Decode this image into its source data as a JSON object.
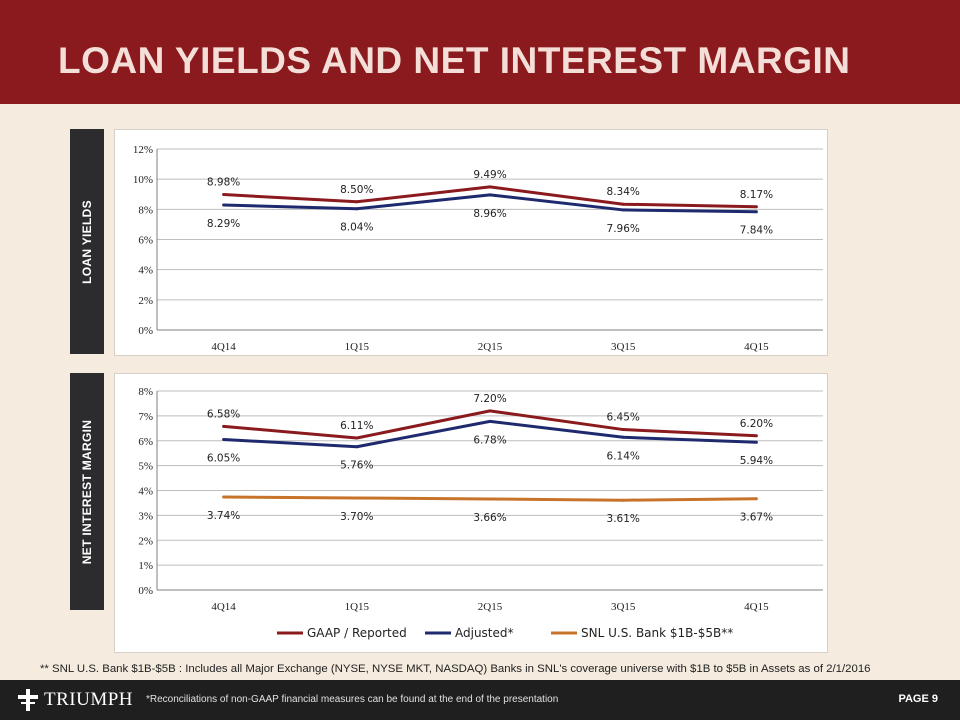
{
  "header": {
    "title": "LOAN YIELDS AND NET INTEREST MARGIN"
  },
  "sections": {
    "loan_yields_label": "LOAN YIELDS",
    "nim_label": "NET INTEREST MARGIN"
  },
  "chart_data": [
    {
      "type": "line",
      "title": "LOAN YIELDS",
      "categories": [
        "4Q14",
        "1Q15",
        "2Q15",
        "3Q15",
        "4Q15"
      ],
      "series": [
        {
          "name": "GAAP / Reported",
          "color": "#8b1a1e",
          "values": [
            8.98,
            8.5,
            9.49,
            8.34,
            8.17
          ],
          "labels": [
            "8.98%",
            "8.50%",
            "9.49%",
            "8.34%",
            "8.17%"
          ]
        },
        {
          "name": "Adjusted*",
          "color": "#1f2a6e",
          "values": [
            8.29,
            8.04,
            8.96,
            7.96,
            7.84
          ],
          "labels": [
            "8.29%",
            "8.04%",
            "8.96%",
            "7.96%",
            "7.84%"
          ]
        }
      ],
      "yticks": [
        "0%",
        "2%",
        "4%",
        "6%",
        "8%",
        "10%",
        "12%"
      ],
      "ylim": [
        0,
        12
      ],
      "grid": true
    },
    {
      "type": "line",
      "title": "NET INTEREST MARGIN",
      "categories": [
        "4Q14",
        "1Q15",
        "2Q15",
        "3Q15",
        "4Q15"
      ],
      "series": [
        {
          "name": "GAAP / Reported",
          "color": "#8b1a1e",
          "values": [
            6.58,
            6.11,
            7.2,
            6.45,
            6.2
          ],
          "labels": [
            "6.58%",
            "6.11%",
            "7.20%",
            "6.45%",
            "6.20%"
          ]
        },
        {
          "name": "Adjusted*",
          "color": "#1f2a6e",
          "values": [
            6.05,
            5.76,
            6.78,
            6.14,
            5.94
          ],
          "labels": [
            "6.05%",
            "5.76%",
            "6.78%",
            "6.14%",
            "5.94%"
          ]
        },
        {
          "name": "SNL U.S. Bank $1B-$5B**",
          "color": "#c8732a",
          "values": [
            3.74,
            3.7,
            3.66,
            3.61,
            3.67
          ],
          "labels": [
            "3.74%",
            "3.70%",
            "3.66%",
            "3.61%",
            "3.67%"
          ]
        }
      ],
      "yticks": [
        "0%",
        "1%",
        "2%",
        "3%",
        "4%",
        "5%",
        "6%",
        "7%",
        "8%"
      ],
      "ylim": [
        0,
        8
      ],
      "grid": true,
      "legend_position": "bottom"
    }
  ],
  "footnote": "**  SNL U.S. Bank $1B-$5B : Includes all Major Exchange (NYSE, NYSE MKT, NASDAQ) Banks in SNL's coverage universe with $1B to $5B in Assets as of 2/1/2016",
  "footer": {
    "logo_text": "TRIUMPH",
    "reconciliation_note": "*Reconciliations of non-GAAP financial measures can be found at the end of the presentation",
    "page_label": "PAGE 9"
  }
}
